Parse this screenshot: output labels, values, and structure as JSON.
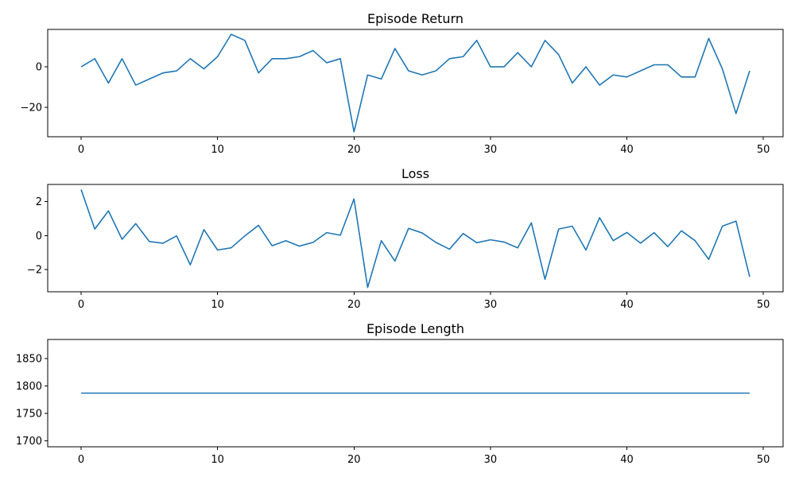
{
  "chart_data": [
    {
      "type": "line",
      "title": "Episode Return",
      "xlabel": "",
      "ylabel": "",
      "xlim": [
        -2.45,
        51.45
      ],
      "ylim": [
        -34.4,
        18.4
      ],
      "xticks": [
        0,
        10,
        20,
        30,
        40,
        50
      ],
      "yticks": [
        -20,
        0
      ],
      "grid": false,
      "color": "#1f77b4",
      "x": [
        0,
        1,
        2,
        3,
        4,
        5,
        6,
        7,
        8,
        9,
        10,
        11,
        12,
        13,
        14,
        15,
        16,
        17,
        18,
        19,
        20,
        21,
        22,
        23,
        24,
        25,
        26,
        27,
        28,
        29,
        30,
        31,
        32,
        33,
        34,
        35,
        36,
        37,
        38,
        39,
        40,
        41,
        42,
        43,
        44,
        45,
        46,
        47,
        48,
        49
      ],
      "y": [
        0,
        4,
        -8,
        4,
        -9,
        -6,
        -3,
        -2,
        4,
        -1,
        5,
        16,
        13,
        -3,
        4,
        4,
        5,
        8,
        2,
        4,
        -32,
        -4,
        -6,
        9,
        -2,
        -4,
        -2,
        4,
        5,
        13,
        0,
        0,
        7,
        0,
        13,
        6,
        -8,
        0,
        -9,
        -4,
        -5,
        -2,
        1,
        1,
        -5,
        -5,
        14,
        -1,
        -23,
        -2
      ]
    },
    {
      "type": "line",
      "title": "Loss",
      "xlabel": "",
      "ylabel": "",
      "xlim": [
        -2.45,
        51.45
      ],
      "ylim": [
        -3.3,
        3.0
      ],
      "xticks": [
        0,
        10,
        20,
        30,
        40,
        50
      ],
      "yticks": [
        -2,
        0,
        2
      ],
      "grid": false,
      "color": "#1f77b4",
      "x": [
        0,
        1,
        2,
        3,
        4,
        5,
        6,
        7,
        8,
        9,
        10,
        11,
        12,
        13,
        14,
        15,
        16,
        17,
        18,
        19,
        20,
        21,
        22,
        23,
        24,
        25,
        26,
        27,
        28,
        29,
        30,
        31,
        32,
        33,
        34,
        35,
        36,
        37,
        38,
        39,
        40,
        41,
        42,
        43,
        44,
        45,
        46,
        47,
        48,
        49
      ],
      "y": [
        2.7,
        0.38,
        1.45,
        -0.22,
        0.7,
        -0.35,
        -0.45,
        -0.02,
        -1.72,
        0.35,
        -0.85,
        -0.72,
        -0.02,
        0.6,
        -0.6,
        -0.3,
        -0.62,
        -0.4,
        0.17,
        0.02,
        2.15,
        -3.05,
        -0.3,
        -1.5,
        0.42,
        0.15,
        -0.4,
        -0.8,
        0.12,
        -0.42,
        -0.25,
        -0.38,
        -0.72,
        0.75,
        -2.57,
        0.38,
        0.55,
        -0.85,
        1.05,
        -0.3,
        0.18,
        -0.45,
        0.17,
        -0.65,
        0.28,
        -0.3,
        -1.4,
        0.55,
        0.85,
        -2.42
      ]
    },
    {
      "type": "line",
      "title": "Episode Length",
      "xlabel": "",
      "ylabel": "",
      "xlim": [
        -2.45,
        51.45
      ],
      "ylim": [
        1689,
        1885
      ],
      "xticks": [
        0,
        10,
        20,
        30,
        40,
        50
      ],
      "yticks": [
        1700,
        1750,
        1800,
        1850
      ],
      "grid": false,
      "color": "#1f77b4",
      "x": [
        0,
        1,
        2,
        3,
        4,
        5,
        6,
        7,
        8,
        9,
        10,
        11,
        12,
        13,
        14,
        15,
        16,
        17,
        18,
        19,
        20,
        21,
        22,
        23,
        24,
        25,
        26,
        27,
        28,
        29,
        30,
        31,
        32,
        33,
        34,
        35,
        36,
        37,
        38,
        39,
        40,
        41,
        42,
        43,
        44,
        45,
        46,
        47,
        48,
        49
      ],
      "y": [
        1787,
        1787,
        1787,
        1787,
        1787,
        1787,
        1787,
        1787,
        1787,
        1787,
        1787,
        1787,
        1787,
        1787,
        1787,
        1787,
        1787,
        1787,
        1787,
        1787,
        1787,
        1787,
        1787,
        1787,
        1787,
        1787,
        1787,
        1787,
        1787,
        1787,
        1787,
        1787,
        1787,
        1787,
        1787,
        1787,
        1787,
        1787,
        1787,
        1787,
        1787,
        1787,
        1787,
        1787,
        1787,
        1787,
        1787,
        1787,
        1787,
        1787
      ]
    }
  ]
}
